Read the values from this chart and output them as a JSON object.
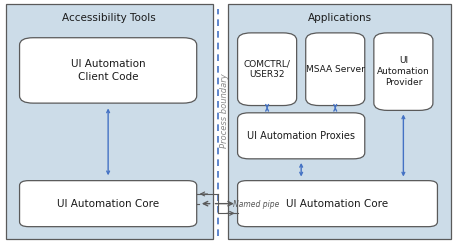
{
  "bg_color": "#ccdce8",
  "box_fill": "#ffffff",
  "box_edge": "#5a5a5a",
  "arrow_color": "#4472c4",
  "text_color": "#1a1a1a",
  "left_panel_title": "Accessibility Tools",
  "right_panel_title": "Applications",
  "left_box1_text": "UI Automation\nClient Code",
  "left_box2_text": "UI Automation Core",
  "right_box1_text": "COMCTRL/\nUSER32",
  "right_box2_text": "MSAA Server",
  "right_box3_text": "UI\nAutomation\nProvider",
  "right_box4_text": "UI Automation Proxies",
  "right_box5_text": "UI Automation Core",
  "named_pipe_label": "Named pipe",
  "process_boundary_label": "Process boundary",
  "figw": 4.57,
  "figh": 2.45,
  "dpi": 100
}
